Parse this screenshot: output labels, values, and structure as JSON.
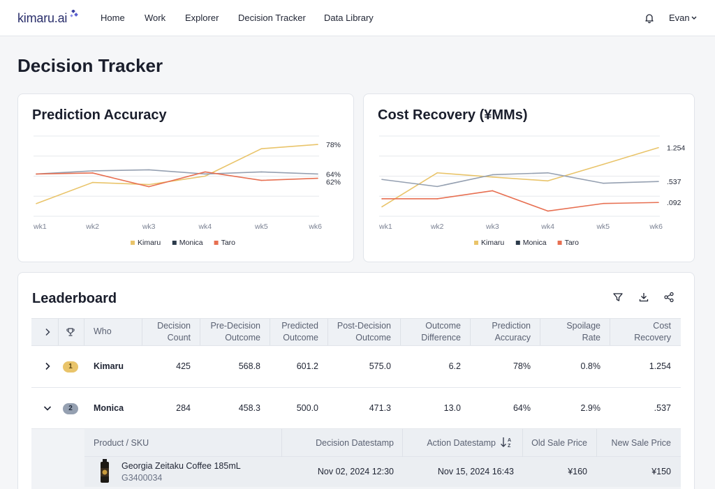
{
  "nav": {
    "logo": "kimaru.ai",
    "items": [
      "Home",
      "Work",
      "Explorer",
      "Decision Tracker",
      "Data Library"
    ],
    "user": "Evan"
  },
  "page": {
    "title": "Decision Tracker"
  },
  "colors": {
    "kimaru": "#e9c46a",
    "monica": "#2b3a4a",
    "monica_line": "#95a0b1",
    "taro": "#e76f51",
    "accent": "#2a2f6b"
  },
  "accuracy": {
    "title": "Prediction Accuracy",
    "end_labels": [
      "78%",
      "64%",
      "62%"
    ],
    "legend": [
      "Kimaru",
      "Monica",
      "Taro"
    ]
  },
  "cost": {
    "title": "Cost Recovery (¥MMs)",
    "end_labels": [
      "1.254",
      ".537",
      ".092"
    ],
    "legend": [
      "Kimaru",
      "Monica",
      "Taro"
    ]
  },
  "chart_data": [
    {
      "type": "line",
      "title": "Prediction Accuracy",
      "categories": [
        "wk1",
        "wk2",
        "wk3",
        "wk4",
        "wk5",
        "wk6"
      ],
      "series": [
        {
          "name": "Kimaru",
          "values": [
            50,
            60,
            59,
            63,
            76,
            78
          ]
        },
        {
          "name": "Monica",
          "values": [
            64,
            65.5,
            66,
            64,
            65,
            64
          ]
        },
        {
          "name": "Taro",
          "values": [
            64,
            64.5,
            58,
            65,
            61,
            62
          ]
        }
      ],
      "ylim": [
        44,
        82
      ],
      "grid": true,
      "legend": "bottom"
    },
    {
      "type": "line",
      "title": "Cost Recovery (¥MMs)",
      "categories": [
        "wk1",
        "wk2",
        "wk3",
        "wk4",
        "wk5",
        "wk6"
      ],
      "series": [
        {
          "name": "Kimaru",
          "values": [
            0.0,
            0.72,
            0.63,
            0.55,
            0.9,
            1.254
          ]
        },
        {
          "name": "Monica",
          "values": [
            0.58,
            0.43,
            0.68,
            0.72,
            0.5,
            0.537
          ]
        },
        {
          "name": "Taro",
          "values": [
            0.17,
            0.17,
            0.34,
            -0.09,
            0.07,
            0.092
          ]
        }
      ],
      "ylim": [
        -0.2,
        1.5
      ],
      "grid": true,
      "legend": "bottom"
    }
  ],
  "leaderboard": {
    "title": "Leaderboard",
    "columns": [
      [
        "Who"
      ],
      [
        "Decision",
        "Count"
      ],
      [
        "Pre-Decision",
        "Outcome"
      ],
      [
        "Predicted",
        "Outcome"
      ],
      [
        "Post-Decision",
        "Outcome"
      ],
      [
        "Outcome",
        "Difference"
      ],
      [
        "Prediction",
        "Accuracy"
      ],
      [
        "Spoilage",
        "Rate"
      ],
      [
        "Cost",
        "Recovery"
      ]
    ],
    "rows": [
      {
        "rank": "1",
        "who": "Kimaru",
        "count": "425",
        "pre": "568.8",
        "predicted": "601.2",
        "post": "575.0",
        "diff": "6.2",
        "accuracy": "78%",
        "spoilage": "0.8%",
        "cost": "1.254"
      },
      {
        "rank": "2",
        "who": "Monica",
        "count": "284",
        "pre": "458.3",
        "predicted": "500.0",
        "post": "471.3",
        "diff": "13.0",
        "accuracy": "64%",
        "spoilage": "2.9%",
        "cost": ".537"
      }
    ],
    "sub_columns": [
      "Product / SKU",
      "Decision Datestamp",
      "Action Datestamp",
      "Old Sale Price",
      "New Sale Price"
    ],
    "sub_rows": [
      {
        "product": "Georgia Zeitaku Coffee 185mL",
        "sku": "G3400034",
        "decision": "Nov 02, 2024 12:30",
        "action": "Nov 15, 2024 16:43",
        "old_price": "¥160",
        "new_price": "¥150"
      }
    ]
  }
}
